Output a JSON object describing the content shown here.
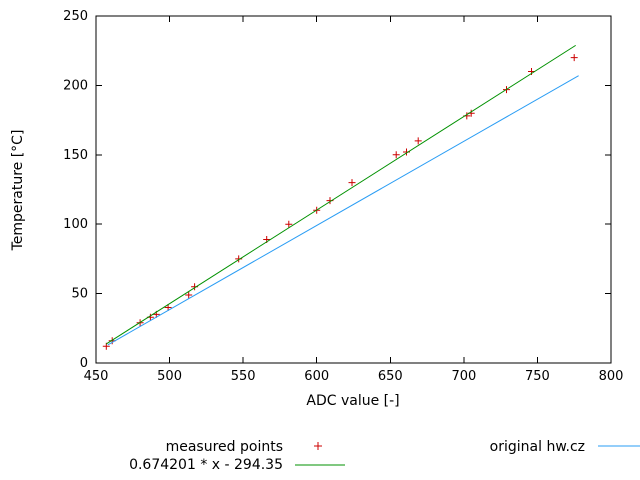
{
  "chart_data": {
    "type": "scatter",
    "title": "",
    "xlabel": "ADC value [-]",
    "ylabel": "Temperature [°C]",
    "xlim": [
      450,
      800
    ],
    "ylim": [
      0,
      250
    ],
    "x_ticks": [
      450,
      500,
      550,
      600,
      650,
      700,
      750,
      800
    ],
    "y_ticks": [
      0,
      50,
      100,
      150,
      200,
      250
    ],
    "grid": false,
    "legend_position": "bottom",
    "series": [
      {
        "name": "measured points",
        "type": "points",
        "marker": "plus",
        "color": "#cc0000",
        "points": [
          [
            457,
            12
          ],
          [
            461,
            16
          ],
          [
            480,
            29
          ],
          [
            487,
            33
          ],
          [
            491,
            35
          ],
          [
            499,
            40
          ],
          [
            513,
            49
          ],
          [
            517,
            55
          ],
          [
            547,
            75
          ],
          [
            566,
            89
          ],
          [
            581,
            100
          ],
          [
            600,
            110
          ],
          [
            609,
            117
          ],
          [
            624,
            130
          ],
          [
            654,
            150
          ],
          [
            661,
            152
          ],
          [
            669,
            160
          ],
          [
            702,
            178
          ],
          [
            705,
            180
          ],
          [
            729,
            197
          ],
          [
            746,
            210
          ],
          [
            775,
            220
          ]
        ]
      },
      {
        "name": "0.674201 * x - 294.35",
        "type": "line",
        "color": "#009100",
        "slope": 0.674201,
        "intercept": -294.35,
        "x_range": [
          457,
          776
        ]
      },
      {
        "name": "original hw.cz",
        "type": "line",
        "color": "#2a9df4",
        "points": [
          [
            458,
            13
          ],
          [
            778,
            207
          ]
        ]
      }
    ]
  }
}
